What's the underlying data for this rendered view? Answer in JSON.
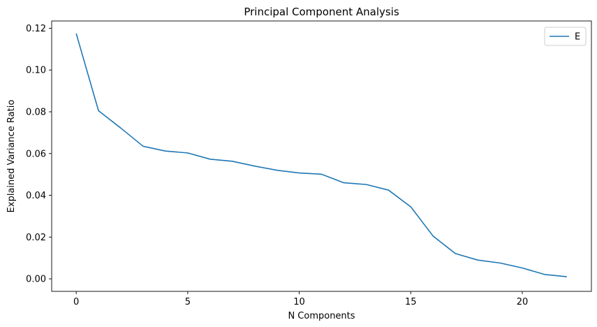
{
  "chart_data": {
    "type": "line",
    "title": "Principal Component Analysis",
    "xlabel": "N Components",
    "ylabel": "Explained Variance Ratio",
    "xlim": [
      -1.1,
      23.1
    ],
    "ylim": [
      -0.006,
      0.1235
    ],
    "xticks": [
      0,
      5,
      10,
      15,
      20
    ],
    "xtick_labels": [
      "0",
      "5",
      "10",
      "15",
      "20"
    ],
    "yticks": [
      0.0,
      0.02,
      0.04,
      0.06,
      0.08,
      0.1,
      0.12
    ],
    "ytick_labels": [
      "0.00",
      "0.02",
      "0.04",
      "0.06",
      "0.08",
      "0.10",
      "0.12"
    ],
    "grid": false,
    "legend_position": "top-right",
    "x": [
      0,
      1,
      2,
      3,
      4,
      5,
      6,
      7,
      8,
      9,
      10,
      11,
      12,
      13,
      14,
      15,
      16,
      17,
      18,
      19,
      20,
      21,
      22
    ],
    "series": [
      {
        "name": "E",
        "color": "#1f77b4",
        "values": [
          0.1175,
          0.0805,
          0.0722,
          0.0635,
          0.0612,
          0.0603,
          0.0573,
          0.0563,
          0.054,
          0.052,
          0.0507,
          0.0501,
          0.046,
          0.0452,
          0.0425,
          0.0345,
          0.0205,
          0.0121,
          0.009,
          0.0076,
          0.0052,
          0.0021,
          0.001
        ]
      }
    ]
  }
}
